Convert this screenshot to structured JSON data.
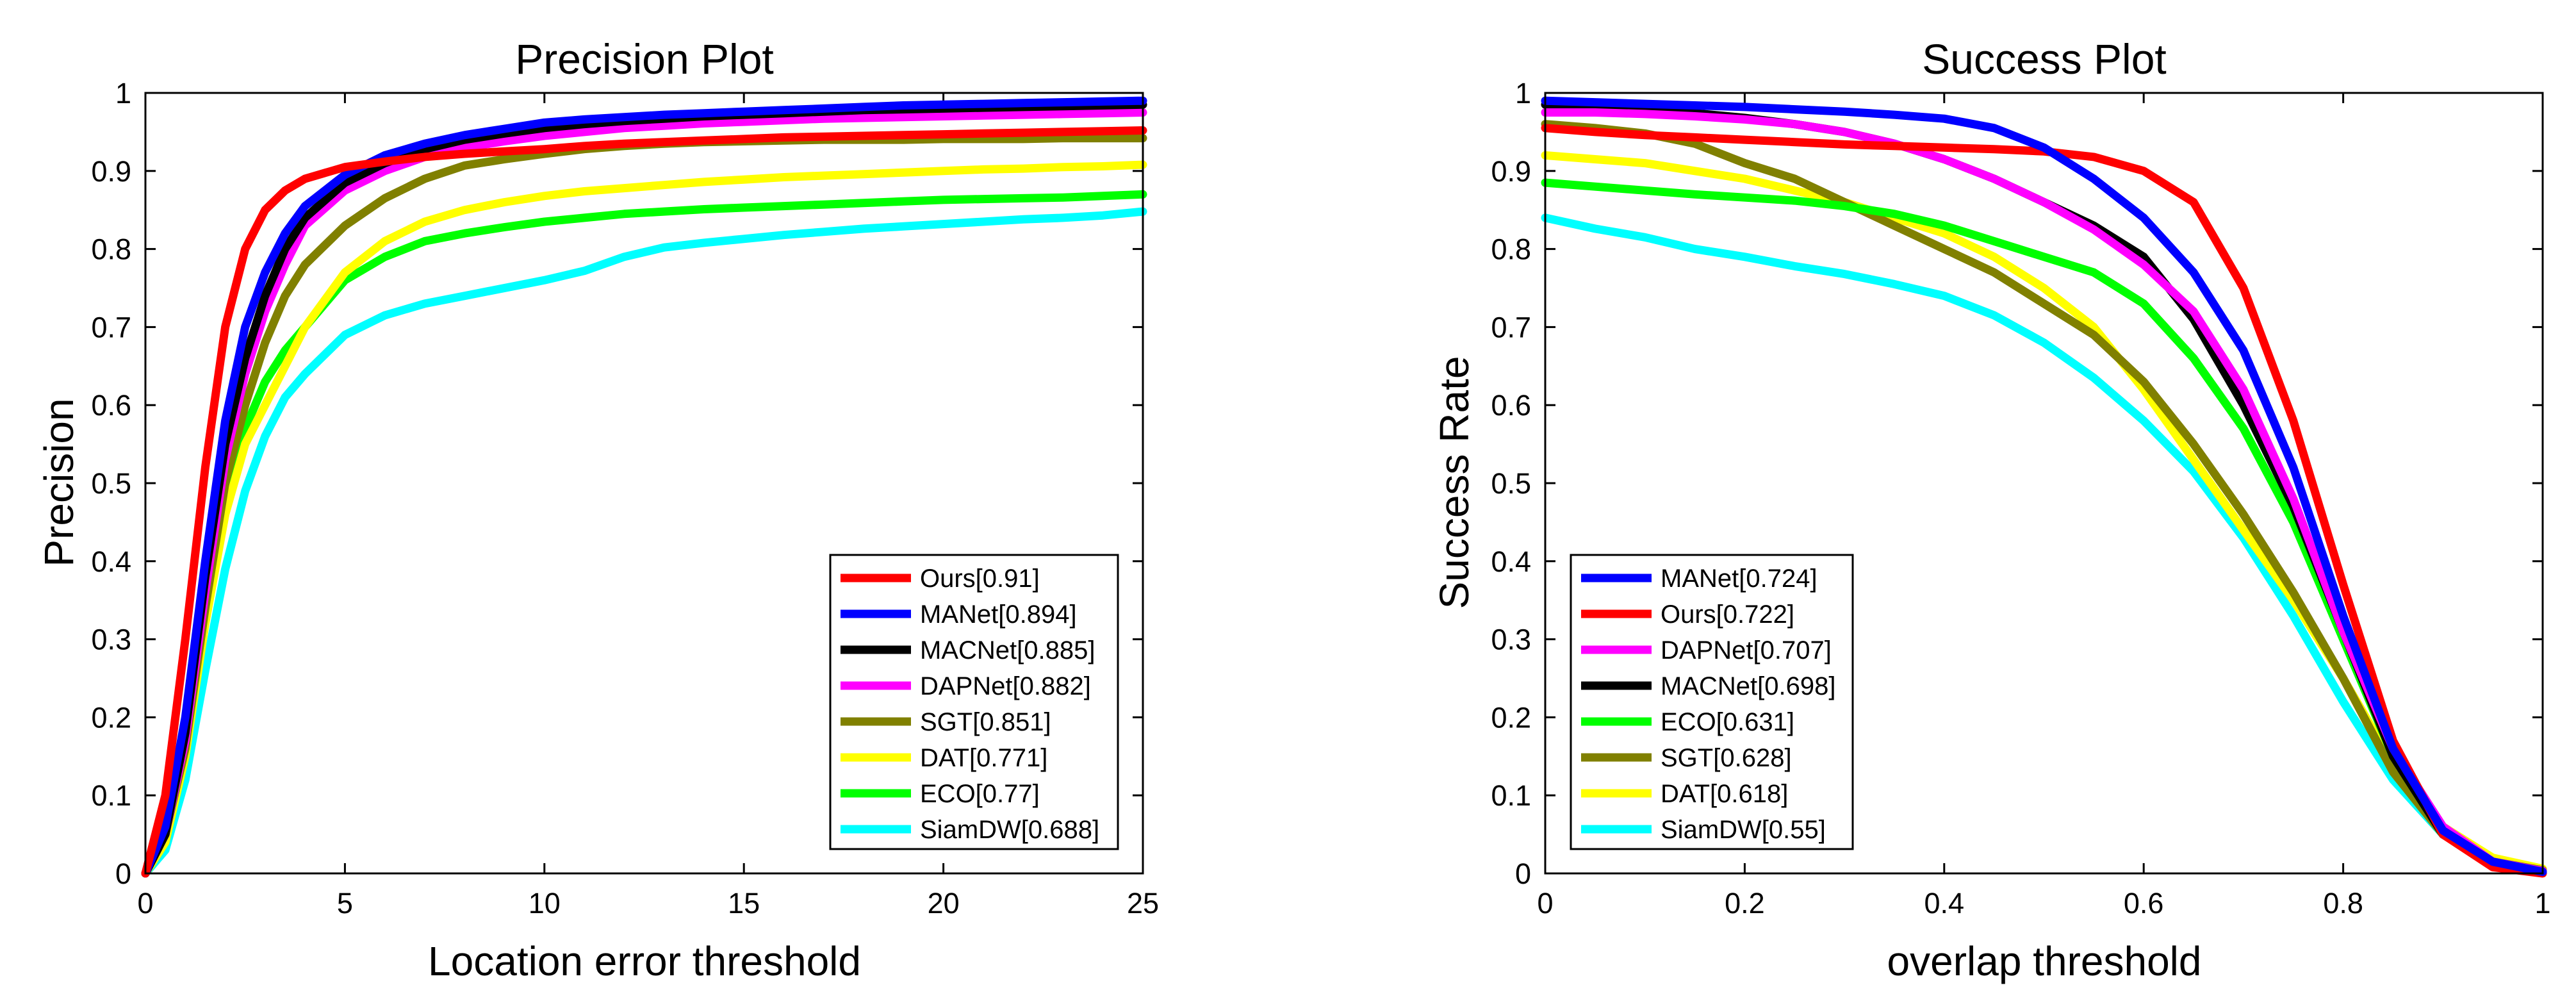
{
  "chart_data": [
    {
      "type": "line",
      "title": "Precision Plot",
      "xlabel": "Location error threshold",
      "ylabel": "Precision",
      "xlim": [
        0,
        25
      ],
      "ylim": [
        0,
        1
      ],
      "xticks": [
        "0",
        "5",
        "10",
        "15",
        "20",
        "25"
      ],
      "yticks": [
        "0",
        "0.1",
        "0.2",
        "0.3",
        "0.4",
        "0.5",
        "0.6",
        "0.7",
        "0.8",
        "0.9",
        "1"
      ],
      "legend_position": "bottom-right",
      "x": [
        0,
        0.5,
        1,
        1.5,
        2,
        2.5,
        3,
        3.5,
        4,
        5,
        6,
        7,
        8,
        9,
        10,
        11,
        12,
        13,
        14,
        15,
        16,
        17,
        18,
        19,
        20,
        21,
        22,
        23,
        24,
        25
      ],
      "series": [
        {
          "name": "Ours[0.91]",
          "color": "#ff0000",
          "values": [
            0,
            0.1,
            0.3,
            0.52,
            0.7,
            0.8,
            0.85,
            0.875,
            0.89,
            0.905,
            0.912,
            0.918,
            0.922,
            0.925,
            0.928,
            0.932,
            0.935,
            0.937,
            0.939,
            0.941,
            0.943,
            0.944,
            0.945,
            0.946,
            0.947,
            0.948,
            0.949,
            0.95,
            0.951,
            0.952
          ]
        },
        {
          "name": "MANet[0.894]",
          "color": "#0000ff",
          "values": [
            0,
            0.06,
            0.2,
            0.4,
            0.58,
            0.7,
            0.77,
            0.82,
            0.855,
            0.895,
            0.92,
            0.935,
            0.946,
            0.954,
            0.962,
            0.966,
            0.969,
            0.972,
            0.974,
            0.976,
            0.978,
            0.98,
            0.982,
            0.984,
            0.985,
            0.986,
            0.987,
            0.988,
            0.989,
            0.99
          ]
        },
        {
          "name": "MACNet[0.885]",
          "color": "#000000",
          "values": [
            0,
            0.05,
            0.18,
            0.38,
            0.55,
            0.66,
            0.74,
            0.8,
            0.84,
            0.885,
            0.91,
            0.928,
            0.94,
            0.948,
            0.955,
            0.96,
            0.964,
            0.967,
            0.97,
            0.972,
            0.974,
            0.976,
            0.978,
            0.979,
            0.98,
            0.981,
            0.982,
            0.983,
            0.984,
            0.985
          ]
        },
        {
          "name": "DAPNet[0.882]",
          "color": "#ff00ff",
          "values": [
            0,
            0.05,
            0.17,
            0.36,
            0.53,
            0.64,
            0.72,
            0.78,
            0.83,
            0.875,
            0.9,
            0.918,
            0.93,
            0.938,
            0.945,
            0.95,
            0.955,
            0.958,
            0.961,
            0.963,
            0.965,
            0.967,
            0.968,
            0.969,
            0.97,
            0.971,
            0.972,
            0.973,
            0.974,
            0.975
          ]
        },
        {
          "name": "SGT[0.851]",
          "color": "#808000",
          "values": [
            0,
            0.05,
            0.16,
            0.34,
            0.5,
            0.6,
            0.68,
            0.74,
            0.78,
            0.83,
            0.865,
            0.89,
            0.907,
            0.915,
            0.922,
            0.928,
            0.932,
            0.935,
            0.937,
            0.938,
            0.939,
            0.94,
            0.94,
            0.94,
            0.941,
            0.941,
            0.941,
            0.942,
            0.942,
            0.942
          ]
        },
        {
          "name": "DAT[0.771]",
          "color": "#ffff00",
          "values": [
            0,
            0.04,
            0.15,
            0.32,
            0.46,
            0.55,
            0.6,
            0.65,
            0.7,
            0.77,
            0.81,
            0.835,
            0.85,
            0.86,
            0.868,
            0.874,
            0.878,
            0.882,
            0.886,
            0.889,
            0.892,
            0.894,
            0.896,
            0.898,
            0.9,
            0.902,
            0.903,
            0.905,
            0.906,
            0.908
          ]
        },
        {
          "name": "ECO[0.77]",
          "color": "#00ff00",
          "values": [
            0,
            0.04,
            0.15,
            0.33,
            0.48,
            0.57,
            0.63,
            0.67,
            0.7,
            0.76,
            0.79,
            0.81,
            0.82,
            0.828,
            0.835,
            0.84,
            0.845,
            0.848,
            0.851,
            0.853,
            0.855,
            0.857,
            0.859,
            0.861,
            0.863,
            0.864,
            0.865,
            0.866,
            0.868,
            0.87
          ]
        },
        {
          "name": "SiamDW[0.688]",
          "color": "#00ffff",
          "values": [
            0,
            0.03,
            0.12,
            0.26,
            0.39,
            0.49,
            0.56,
            0.61,
            0.64,
            0.69,
            0.715,
            0.73,
            0.74,
            0.75,
            0.76,
            0.772,
            0.79,
            0.802,
            0.808,
            0.813,
            0.818,
            0.822,
            0.826,
            0.829,
            0.832,
            0.835,
            0.838,
            0.84,
            0.843,
            0.848
          ]
        }
      ]
    },
    {
      "type": "line",
      "title": "Success Plot",
      "xlabel": "overlap threshold",
      "ylabel": "Success Rate",
      "xlim": [
        0,
        1
      ],
      "ylim": [
        0,
        1
      ],
      "xticks": [
        "0",
        "0.2",
        "0.4",
        "0.6",
        "0.8",
        "1"
      ],
      "yticks": [
        "0",
        "0.1",
        "0.2",
        "0.3",
        "0.4",
        "0.5",
        "0.6",
        "0.7",
        "0.8",
        "0.9",
        "1"
      ],
      "legend_position": "bottom-left",
      "x": [
        0,
        0.05,
        0.1,
        0.15,
        0.2,
        0.25,
        0.3,
        0.35,
        0.4,
        0.45,
        0.5,
        0.55,
        0.6,
        0.65,
        0.7,
        0.75,
        0.8,
        0.85,
        0.9,
        0.95,
        1
      ],
      "series": [
        {
          "name": "MANet[0.724]",
          "color": "#0000ff",
          "values": [
            0.99,
            0.988,
            0.986,
            0.984,
            0.982,
            0.979,
            0.976,
            0.972,
            0.967,
            0.955,
            0.93,
            0.89,
            0.84,
            0.77,
            0.67,
            0.52,
            0.33,
            0.16,
            0.055,
            0.015,
            0.002
          ]
        },
        {
          "name": "Ours[0.722]",
          "color": "#ff0000",
          "values": [
            0.955,
            0.95,
            0.946,
            0.943,
            0.94,
            0.937,
            0.934,
            0.932,
            0.93,
            0.928,
            0.925,
            0.918,
            0.9,
            0.86,
            0.75,
            0.58,
            0.37,
            0.17,
            0.05,
            0.008,
            0.0
          ]
        },
        {
          "name": "DAPNet[0.707]",
          "color": "#ff00ff",
          "values": [
            0.975,
            0.975,
            0.973,
            0.97,
            0.966,
            0.96,
            0.95,
            0.935,
            0.915,
            0.89,
            0.86,
            0.825,
            0.78,
            0.72,
            0.62,
            0.48,
            0.31,
            0.16,
            0.06,
            0.015,
            0.003
          ]
        },
        {
          "name": "MACNet[0.698]",
          "color": "#000000",
          "values": [
            0.985,
            0.982,
            0.978,
            0.974,
            0.968,
            0.96,
            0.95,
            0.935,
            0.915,
            0.89,
            0.86,
            0.83,
            0.79,
            0.71,
            0.6,
            0.47,
            0.31,
            0.15,
            0.05,
            0.012,
            0.002
          ]
        },
        {
          "name": "ECO[0.631]",
          "color": "#00ff00",
          "values": [
            0.885,
            0.88,
            0.875,
            0.87,
            0.866,
            0.862,
            0.855,
            0.845,
            0.83,
            0.81,
            0.79,
            0.77,
            0.73,
            0.66,
            0.57,
            0.45,
            0.3,
            0.15,
            0.05,
            0.012,
            0.002
          ]
        },
        {
          "name": "SGT[0.628]",
          "color": "#808000",
          "values": [
            0.96,
            0.955,
            0.948,
            0.935,
            0.91,
            0.89,
            0.86,
            0.83,
            0.8,
            0.77,
            0.73,
            0.69,
            0.63,
            0.55,
            0.46,
            0.36,
            0.25,
            0.13,
            0.05,
            0.015,
            0.004
          ]
        },
        {
          "name": "DAT[0.618]",
          "color": "#ffff00",
          "values": [
            0.92,
            0.915,
            0.91,
            0.9,
            0.89,
            0.875,
            0.86,
            0.84,
            0.82,
            0.79,
            0.75,
            0.7,
            0.62,
            0.53,
            0.44,
            0.35,
            0.25,
            0.14,
            0.06,
            0.02,
            0.006
          ]
        },
        {
          "name": "SiamDW[0.55]",
          "color": "#00ffff",
          "values": [
            0.84,
            0.826,
            0.815,
            0.8,
            0.79,
            0.778,
            0.768,
            0.755,
            0.74,
            0.715,
            0.68,
            0.635,
            0.58,
            0.515,
            0.43,
            0.33,
            0.22,
            0.12,
            0.05,
            0.015,
            0.004
          ]
        }
      ]
    }
  ]
}
